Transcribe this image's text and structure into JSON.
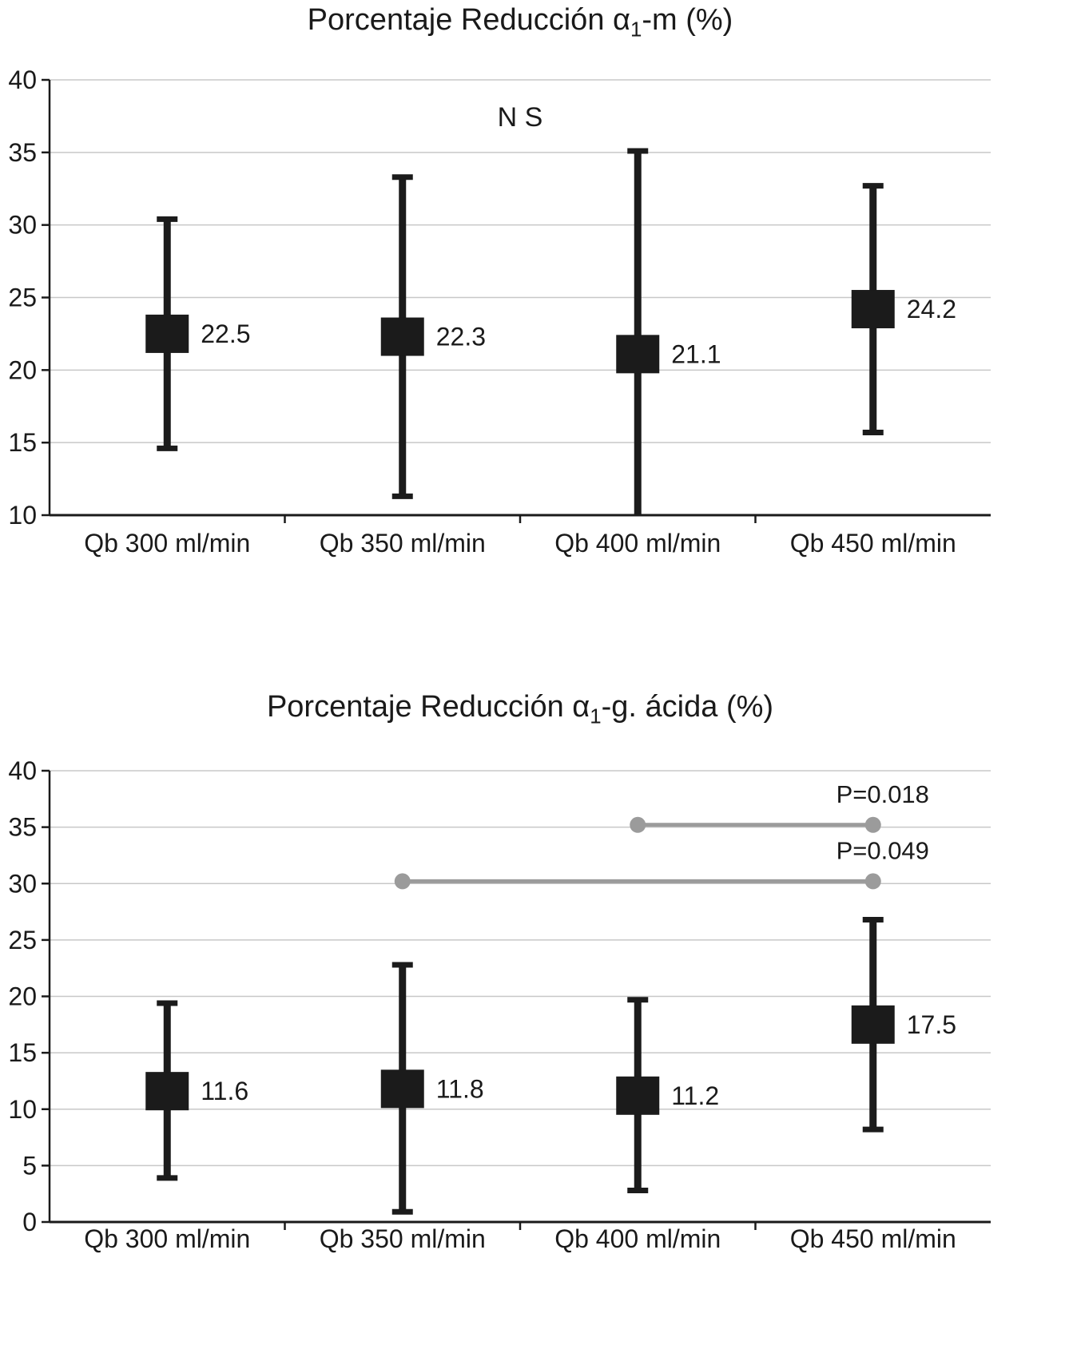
{
  "colors": {
    "bar": "#1b1b1b",
    "grid": "#c8c8c8",
    "axis": "#1a1a1a",
    "significance": "#9b9b9b",
    "text": "#1a1a1a"
  },
  "chart_data": [
    {
      "type": "errorbar",
      "title": "Porcentaje Reducción α1-m (%)",
      "title_pre": "Porcentaje Reducción α",
      "title_sub": "1",
      "title_post": "-m (%)",
      "annotation": "N S",
      "categories": [
        "Qb 300 ml/min",
        "Qb 350 ml/min",
        "Qb 400 ml/min",
        "Qb 450 ml/min"
      ],
      "means": [
        22.5,
        22.3,
        21.1,
        24.2
      ],
      "upper": [
        30.4,
        33.3,
        35.1,
        32.7
      ],
      "lower": [
        14.6,
        11.3,
        10.0,
        15.7
      ],
      "value_labels": [
        "22.5",
        "22.3",
        "21.1",
        "24.2"
      ],
      "ylim": [
        10,
        40
      ],
      "ytick_step": 5,
      "grid": true,
      "legend": "none",
      "significance": []
    },
    {
      "type": "errorbar",
      "title": "Porcentaje Reducción α1-g. ácida (%)",
      "title_pre": "Porcentaje Reducción α",
      "title_sub": "1",
      "title_post": "-g. ácida (%)",
      "annotation": "",
      "categories": [
        "Qb 300 ml/min",
        "Qb 350 ml/min",
        "Qb 400 ml/min",
        "Qb 450 ml/min"
      ],
      "means": [
        11.6,
        11.8,
        11.2,
        17.5
      ],
      "upper": [
        19.4,
        22.8,
        19.7,
        26.8
      ],
      "lower": [
        3.9,
        0.9,
        2.8,
        8.2
      ],
      "value_labels": [
        "11.6",
        "11.8",
        "11.2",
        "17.5"
      ],
      "ylim": [
        0,
        40
      ],
      "ytick_step": 5,
      "grid": true,
      "legend": "none",
      "significance": [
        {
          "label": "P=0.018",
          "from_category": 2,
          "to_category": 3,
          "y": 35.2
        },
        {
          "label": "P=0.049",
          "from_category": 1,
          "to_category": 3,
          "y": 30.2
        }
      ]
    }
  ]
}
